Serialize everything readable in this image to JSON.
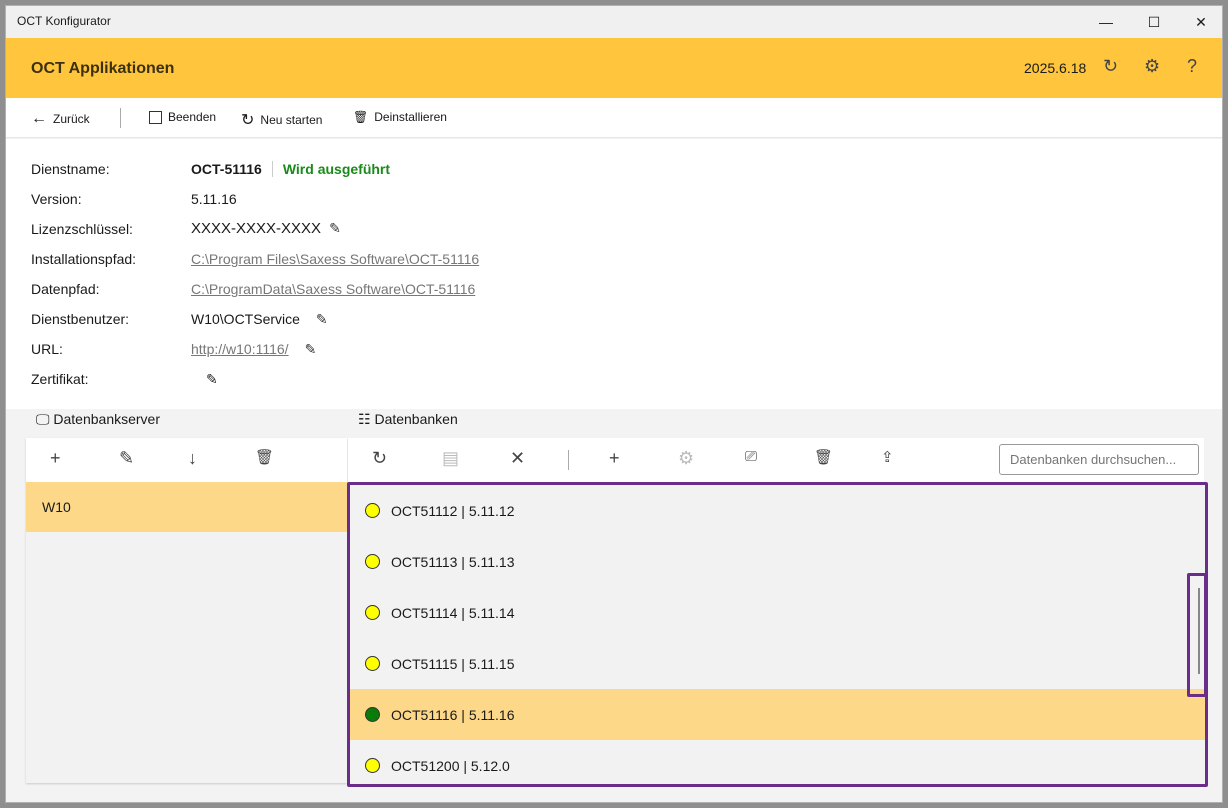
{
  "window": {
    "title": "OCT Konfigurator",
    "minimize": "—",
    "maximize": "☐",
    "close": "✕"
  },
  "header": {
    "title": "OCT Applikationen",
    "version": "2025.6.18"
  },
  "toolbar": {
    "back": "Zurück",
    "stop": "Beenden",
    "restart": "Neu starten",
    "uninstall": "Deinstallieren"
  },
  "details": {
    "service_label": "Dienstname:",
    "service": "OCT-51116",
    "status": "Wird ausgeführt",
    "status_color": "#1a8a1a",
    "version_label": "Version:",
    "version": "5.11.16",
    "license_label": "Lizenzschlüssel:",
    "license": "XXXX-XXXX-XXXX",
    "install_label": "Installationspfad:",
    "install": "C:\\Program Files\\Saxess Software\\OCT-51116",
    "data_label": "Datenpfad:",
    "data": "C:\\ProgramData\\Saxess Software\\OCT-51116",
    "user_label": "Dienstbenutzer:",
    "user": "W10\\OCTService",
    "url_label": "URL:",
    "url": "http://w10:1116/",
    "cert_label": "Zertifikat:"
  },
  "servers": {
    "title": "Datenbankserver",
    "items": [
      "W10"
    ]
  },
  "databases": {
    "title": "Datenbanken",
    "search_placeholder": "Datenbanken durchsuchen...",
    "items": [
      {
        "name": "OCT51112 | 5.11.12",
        "status": "yellow"
      },
      {
        "name": "OCT51113 | 5.11.13",
        "status": "yellow"
      },
      {
        "name": "OCT51114 | 5.11.14",
        "status": "yellow"
      },
      {
        "name": "OCT51115 | 5.11.15",
        "status": "yellow"
      },
      {
        "name": "OCT51116 | 5.11.16",
        "status": "green",
        "selected": true
      },
      {
        "name": "OCT51200 | 5.12.0",
        "status": "yellow"
      }
    ]
  }
}
